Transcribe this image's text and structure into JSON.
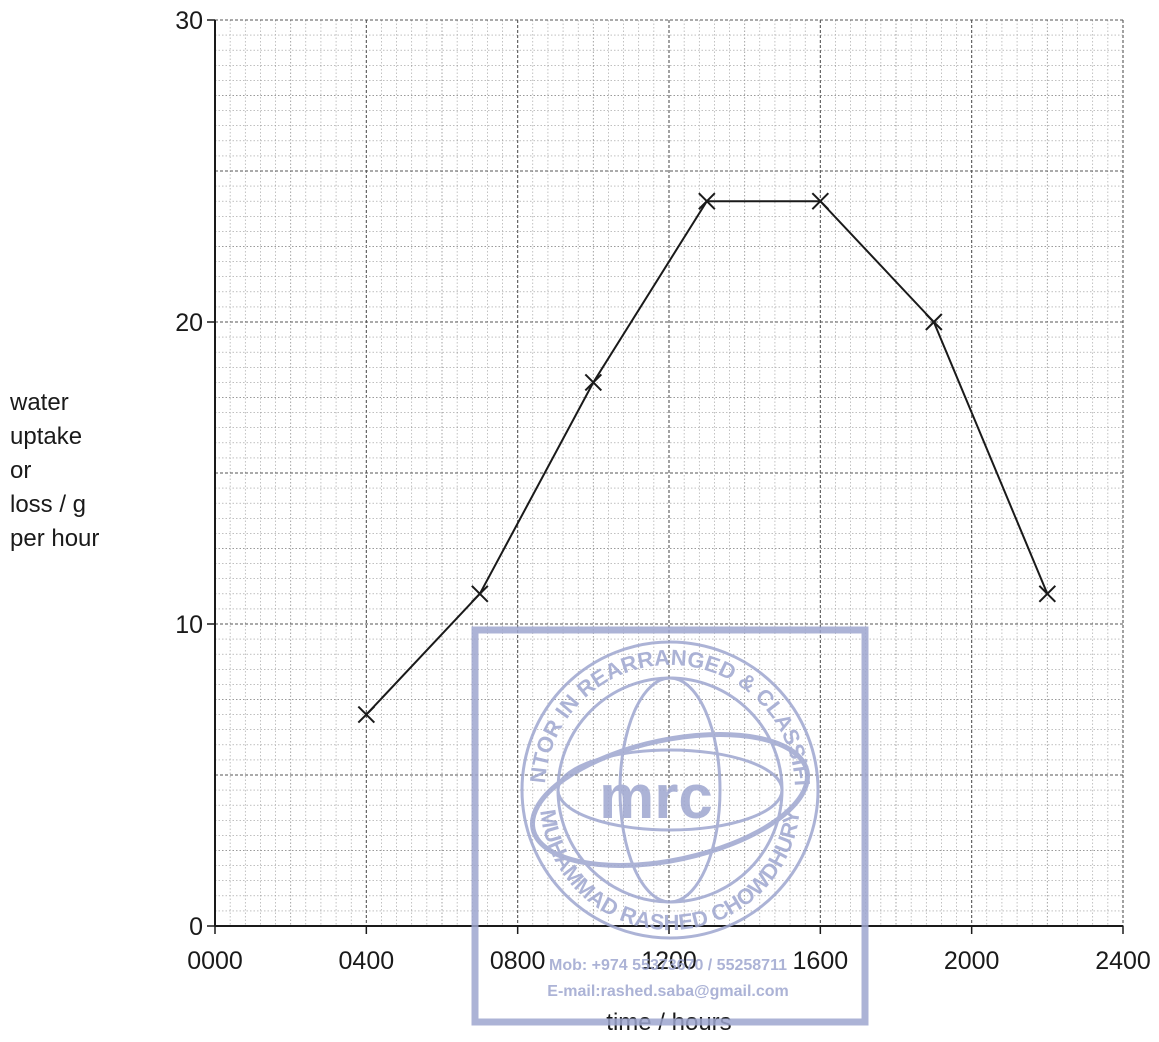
{
  "chart_data": {
    "type": "line",
    "title": "",
    "xlabel": "time / hours",
    "ylabel_lines": [
      "water",
      "uptake",
      "or",
      "loss / g",
      "per hour"
    ],
    "xlim": [
      0,
      2400
    ],
    "ylim": [
      0,
      30
    ],
    "x_ticks": [
      "0000",
      "0400",
      "0800",
      "1200",
      "1600",
      "2000",
      "2400"
    ],
    "y_ticks": [
      "0",
      "10",
      "20",
      "30"
    ],
    "grid": true,
    "legend": "none",
    "marker": "cross",
    "series": [
      {
        "x": [
          "0400",
          "0700",
          "1000",
          "1300",
          "1600",
          "1900",
          "2200"
        ],
        "values": [
          7,
          11,
          18,
          24,
          24,
          20,
          11
        ]
      }
    ]
  },
  "watermark": {
    "ring_text_top": "MENTOR IN REARRANGED & CLASSIFIED",
    "ring_text_bottom": "MUHAMMAD RASHED CHOWDHURY",
    "logo": "mrc",
    "phone": "Mob:  +974 55373670 / 55258711",
    "email": "E-mail:rashed.saba@gmail.com"
  },
  "colors": {
    "line": "#1a1a1a",
    "grid_major": "#555555",
    "grid_minor": "#9a9a9a",
    "watermark": "#9ea6cf"
  }
}
